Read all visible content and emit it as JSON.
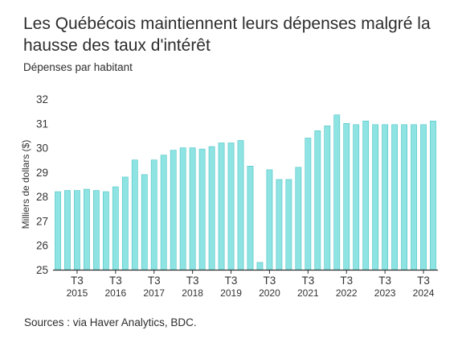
{
  "header": {
    "title": "Les Québécois maintiennent leurs dépenses malgré la hausse des taux d'intérêt",
    "subtitle": "Dépenses par habitant"
  },
  "footer": {
    "source": "Sources : via Haver Analytics, BDC."
  },
  "colors": {
    "bar": "#8ee3e3",
    "bar_edge": "#4fc4c4",
    "axis": "#333333"
  },
  "chart_data": {
    "type": "bar",
    "ylabel": "Milliers de dollars ($)",
    "ylim": [
      25,
      32
    ],
    "yticks": [
      25,
      26,
      27,
      28,
      29,
      30,
      31,
      32
    ],
    "grid": false,
    "x_tick_labels": [
      {
        "index": 2,
        "quarter": "T3",
        "year": "2015"
      },
      {
        "index": 6,
        "quarter": "T3",
        "year": "2016"
      },
      {
        "index": 10,
        "quarter": "T3",
        "year": "2017"
      },
      {
        "index": 14,
        "quarter": "T3",
        "year": "2018"
      },
      {
        "index": 18,
        "quarter": "T3",
        "year": "2019"
      },
      {
        "index": 22,
        "quarter": "T3",
        "year": "2020"
      },
      {
        "index": 26,
        "quarter": "T3",
        "year": "2021"
      },
      {
        "index": 30,
        "quarter": "T3",
        "year": "2022"
      },
      {
        "index": 34,
        "quarter": "T3",
        "year": "2023"
      },
      {
        "index": 38,
        "quarter": "T3",
        "year": "2024"
      }
    ],
    "values": [
      28.2,
      28.25,
      28.25,
      28.3,
      28.25,
      28.2,
      28.4,
      28.8,
      29.5,
      28.9,
      29.5,
      29.7,
      29.9,
      30.0,
      30.0,
      29.95,
      30.05,
      30.2,
      30.2,
      30.3,
      29.25,
      25.3,
      29.1,
      28.7,
      28.7,
      29.2,
      30.4,
      30.7,
      30.9,
      31.35,
      31.0,
      30.95,
      31.1,
      30.95,
      30.95,
      30.95,
      30.95,
      30.95,
      30.95,
      31.1
    ]
  }
}
